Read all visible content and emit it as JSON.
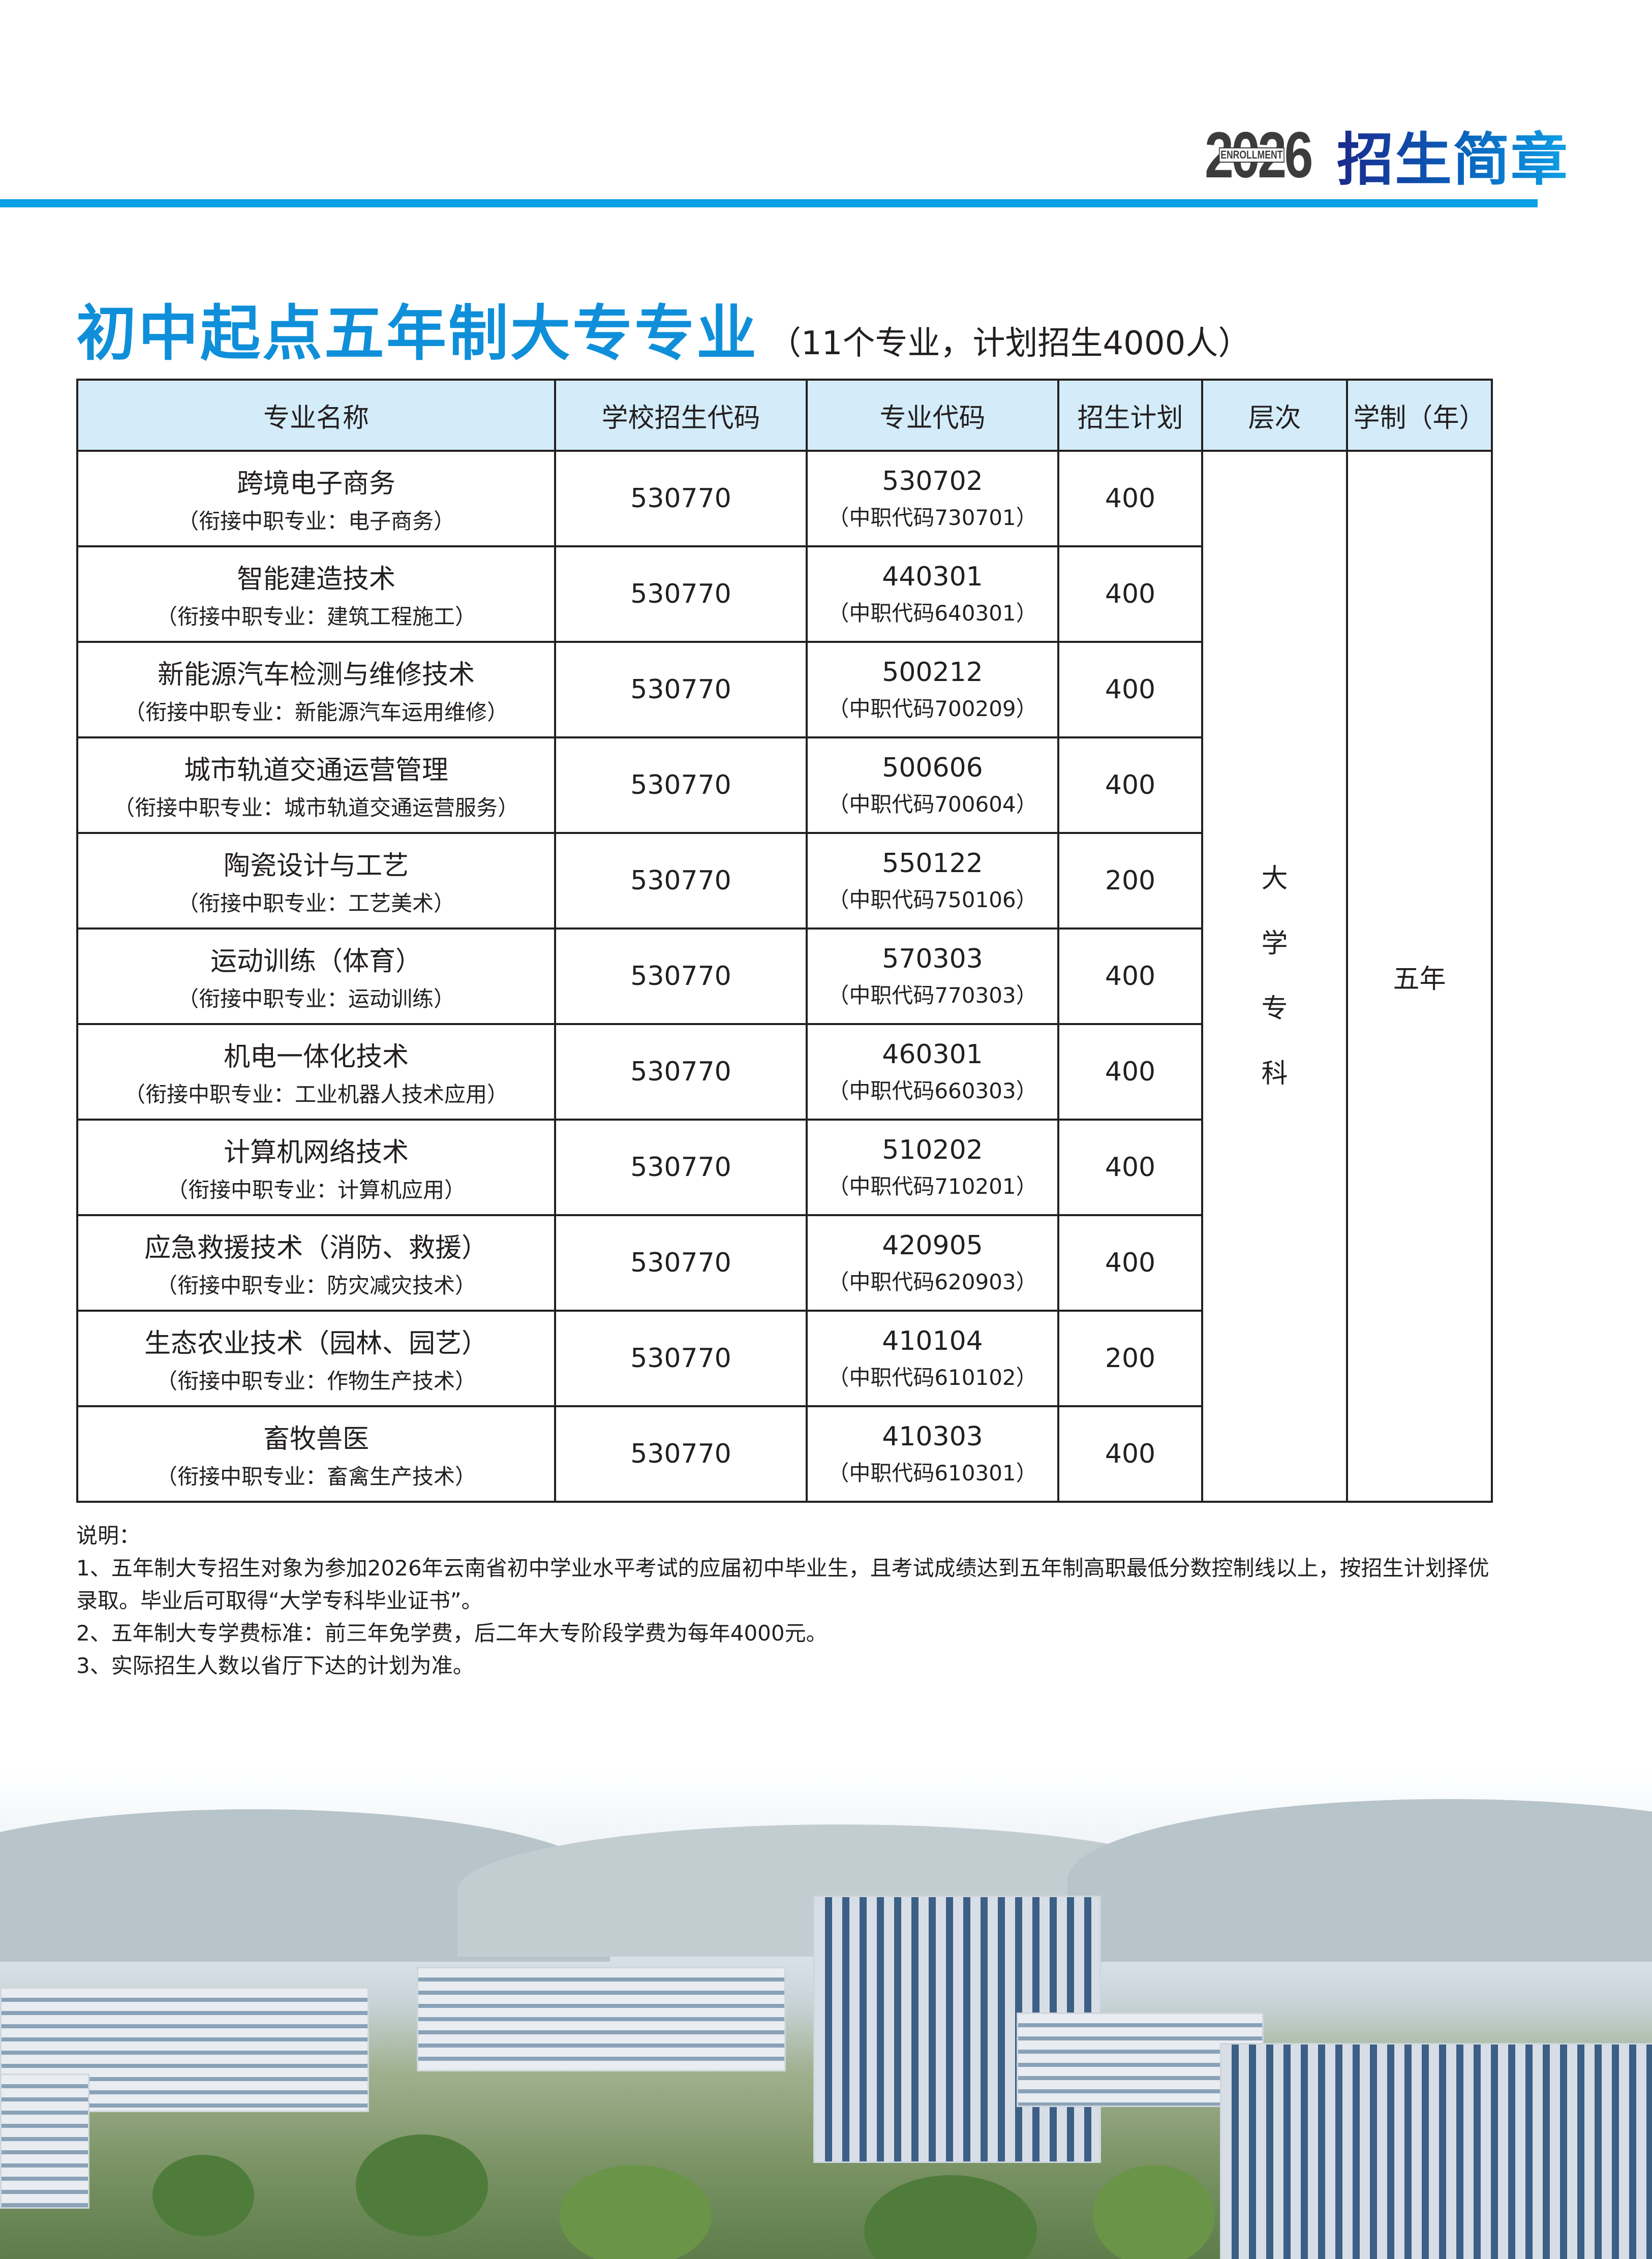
{
  "header": {
    "logo_year": "2026",
    "logo_en": "ENROLLMENT",
    "logo_cn": "招生简章",
    "accent_color": "#0aa0e4"
  },
  "section": {
    "title": "初中起点五年制大专专业",
    "subtitle": "（11个专业，计划招生4000人）"
  },
  "table": {
    "headers": [
      "专业名称",
      "学校招生代码",
      "专业代码",
      "招生计划",
      "层次",
      "学制（年）"
    ],
    "level": [
      "大",
      "学",
      "专",
      "科"
    ],
    "duration": "五年",
    "rows": [
      {
        "name": "跨境电子商务",
        "link": "（衔接中职专业：电子商务）",
        "school_code": "530770",
        "major_code": "530702",
        "secondary_code": "（中职代码730701）",
        "plan": "400"
      },
      {
        "name": "智能建造技术",
        "link": "（衔接中职专业：建筑工程施工）",
        "school_code": "530770",
        "major_code": "440301",
        "secondary_code": "（中职代码640301）",
        "plan": "400"
      },
      {
        "name": "新能源汽车检测与维修技术",
        "link": "（衔接中职专业：新能源汽车运用维修）",
        "school_code": "530770",
        "major_code": "500212",
        "secondary_code": "（中职代码700209）",
        "plan": "400"
      },
      {
        "name": "城市轨道交通运营管理",
        "link": "（衔接中职专业：城市轨道交通运营服务）",
        "school_code": "530770",
        "major_code": "500606",
        "secondary_code": "（中职代码700604）",
        "plan": "400"
      },
      {
        "name": "陶瓷设计与工艺",
        "link": "（衔接中职专业：工艺美术）",
        "school_code": "530770",
        "major_code": "550122",
        "secondary_code": "（中职代码750106）",
        "plan": "200"
      },
      {
        "name": "运动训练（体育）",
        "link": "（衔接中职专业：运动训练）",
        "school_code": "530770",
        "major_code": "570303",
        "secondary_code": "（中职代码770303）",
        "plan": "400"
      },
      {
        "name": "机电一体化技术",
        "link": "（衔接中职专业：工业机器人技术应用）",
        "school_code": "530770",
        "major_code": "460301",
        "secondary_code": "（中职代码660303）",
        "plan": "400"
      },
      {
        "name": "计算机网络技术",
        "link": "（衔接中职专业：计算机应用）",
        "school_code": "530770",
        "major_code": "510202",
        "secondary_code": "（中职代码710201）",
        "plan": "400"
      },
      {
        "name": "应急救援技术（消防、救援）",
        "link": "（衔接中职专业：防灾减灾技术）",
        "school_code": "530770",
        "major_code": "420905",
        "secondary_code": "（中职代码620903）",
        "plan": "400"
      },
      {
        "name": "生态农业技术（园林、园艺）",
        "link": "（衔接中职专业：作物生产技术）",
        "school_code": "530770",
        "major_code": "410104",
        "secondary_code": "（中职代码610102）",
        "plan": "200"
      },
      {
        "name": "畜牧兽医",
        "link": "（衔接中职专业：畜禽生产技术）",
        "school_code": "530770",
        "major_code": "410303",
        "secondary_code": "（中职代码610301）",
        "plan": "400"
      }
    ]
  },
  "notes": {
    "heading": "说明：",
    "items": [
      "1、五年制大专招生对象为参加2026年云南省初中学业水平考试的应届初中毕业生，且考试成绩达到五年制高职最低分数控制线以上，按招生计划择优录取。毕业后可取得“大学专科毕业证书”。",
      "2、五年制大专学费标准：前三年免学费，后二年大专阶段学费为每年4000元。",
      "3、实际招生人数以省厅下达的计划为准。"
    ]
  }
}
